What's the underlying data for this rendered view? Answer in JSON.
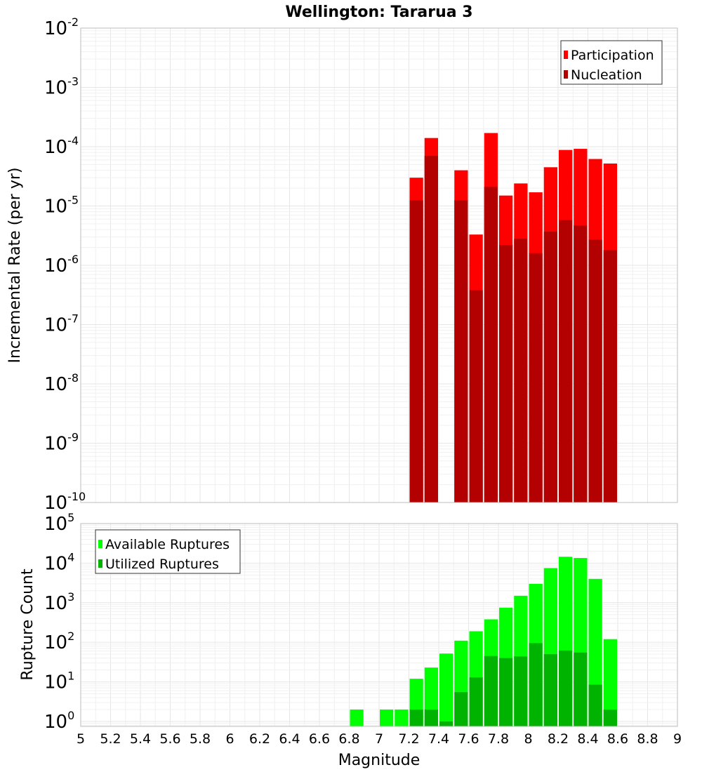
{
  "chart_data": [
    {
      "type": "bar",
      "panel": "top",
      "title": "Wellington: Tararua 3",
      "xlabel": "",
      "ylabel": "Incremental Rate (per yr)",
      "yscale": "log",
      "ylim": [
        1e-10,
        0.01
      ],
      "xlim": [
        5,
        9
      ],
      "bar_width": 0.1,
      "y_tick_exponents": [
        "-10",
        "-9",
        "-8",
        "-7",
        "-6",
        "-5",
        "-4",
        "-3",
        "-2"
      ],
      "legend_placement": "top-right",
      "x": [
        7.25,
        7.35,
        7.55,
        7.65,
        7.75,
        7.85,
        7.95,
        8.05,
        8.15,
        8.25,
        8.35,
        8.45,
        8.55
      ],
      "series": [
        {
          "name": "Participation",
          "color": "#ff0000",
          "values": [
            3e-05,
            0.00014,
            4e-05,
            3.3e-06,
            0.00017,
            1.5e-05,
            2.4e-05,
            1.7e-05,
            4.5e-05,
            8.8e-05,
            9.2e-05,
            6.2e-05,
            5.2e-05
          ]
        },
        {
          "name": "Nucleation",
          "color": "#b30000",
          "values": [
            1.25e-05,
            7e-05,
            1.25e-05,
            3.8e-07,
            2.1e-05,
            2.2e-06,
            2.8e-06,
            1.6e-06,
            3.7e-06,
            5.8e-06,
            4.7e-06,
            2.7e-06,
            1.8e-06
          ]
        }
      ]
    },
    {
      "type": "bar",
      "panel": "bottom",
      "xlabel": "Magnitude",
      "ylabel": "Rupture Count",
      "yscale": "log",
      "ylim": [
        0.75,
        100000.0
      ],
      "xlim": [
        5,
        9
      ],
      "bar_width": 0.1,
      "x_ticks": [
        "5",
        "5.2",
        "5.4",
        "5.6",
        "5.8",
        "6",
        "6.2",
        "6.4",
        "6.6",
        "6.8",
        "7",
        "7.2",
        "7.4",
        "7.6",
        "7.8",
        "8",
        "8.2",
        "8.4",
        "8.6",
        "8.8",
        "9"
      ],
      "y_tick_exponents": [
        "0",
        "1",
        "2",
        "3",
        "4",
        "5"
      ],
      "legend_placement": "top-left",
      "x": [
        6.85,
        7.05,
        7.15,
        7.25,
        7.35,
        7.45,
        7.55,
        7.65,
        7.75,
        7.85,
        7.95,
        8.05,
        8.15,
        8.25,
        8.35,
        8.45,
        8.55
      ],
      "series": [
        {
          "name": "Available Ruptures",
          "color": "#00ff00",
          "values": [
            2,
            2,
            2,
            12,
            23,
            52,
            110,
            190,
            380,
            750,
            1500,
            3000,
            7500,
            14500,
            13500,
            4000,
            120
          ]
        },
        {
          "name": "Utilized Ruptures",
          "color": "#00b300",
          "values": [
            null,
            null,
            null,
            2,
            2,
            1,
            5.5,
            13,
            45,
            40,
            44,
            95,
            50,
            62,
            55,
            8.5,
            2
          ]
        }
      ]
    }
  ]
}
